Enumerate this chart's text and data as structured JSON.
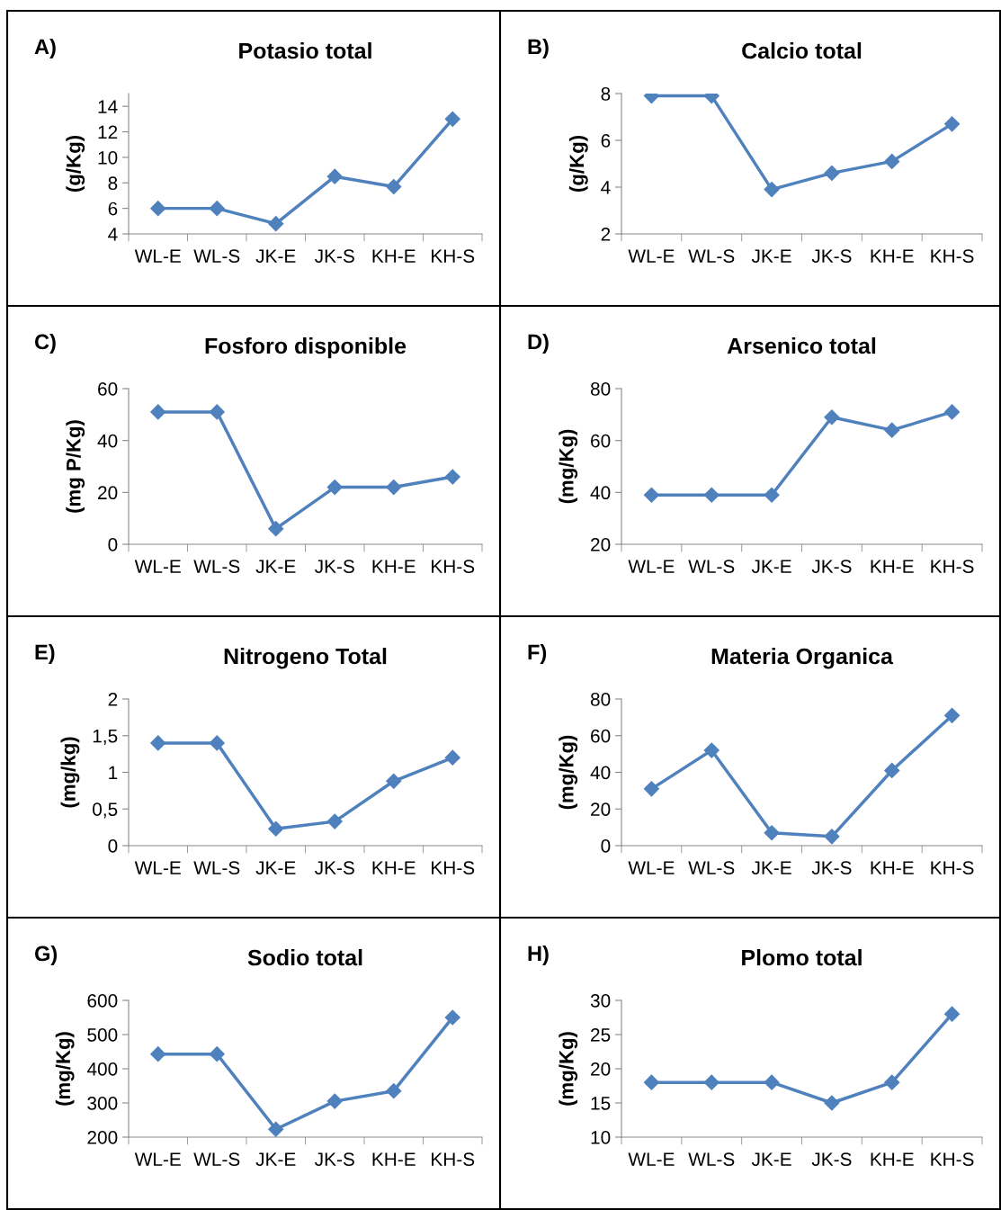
{
  "chart_data": [
    {
      "type": "line",
      "title": "Potasio total",
      "ylabel": "(g/Kg)",
      "annotations": [
        "A)"
      ],
      "categories": [
        "WL-E",
        "WL-S",
        "JK-E",
        "JK-S",
        "KH-E",
        "KH-S"
      ],
      "series": [
        {
          "color": "#4f81bd",
          "values": [
            6,
            6,
            4.8,
            8.5,
            7.7,
            13
          ]
        }
      ],
      "ylim": [
        4,
        15
      ],
      "yticks": [
        4,
        6,
        8,
        10,
        12,
        14
      ],
      "marker": "diamond",
      "line_style": "solid",
      "grid": false,
      "legend": false
    },
    {
      "type": "line",
      "title": "Calcio total",
      "ylabel": "(g/Kg)",
      "annotations": [
        "B)"
      ],
      "categories": [
        "WL-E",
        "WL-S",
        "JK-E",
        "JK-S",
        "KH-E",
        "KH-S"
      ],
      "series": [
        {
          "color": "#4f81bd",
          "values": [
            7.9,
            7.9,
            3.9,
            4.6,
            5.1,
            6.7
          ]
        }
      ],
      "ylim": [
        2,
        8
      ],
      "yticks": [
        2,
        4,
        6,
        8
      ],
      "marker": "diamond",
      "line_style": "solid",
      "grid": false,
      "legend": false
    },
    {
      "type": "line",
      "title": "Fosforo disponible",
      "ylabel": "(mg P/Kg)",
      "annotations": [
        "C)"
      ],
      "categories": [
        "WL-E",
        "WL-S",
        "JK-E",
        "JK-S",
        "KH-E",
        "KH-S"
      ],
      "series": [
        {
          "color": "#4f81bd",
          "values": [
            51,
            51,
            6,
            22,
            22,
            26
          ]
        }
      ],
      "ylim": [
        0,
        60
      ],
      "yticks": [
        0,
        20,
        40,
        60
      ],
      "marker": "diamond",
      "line_style": "solid",
      "grid": false,
      "legend": false
    },
    {
      "type": "line",
      "title": "Arsenico total",
      "ylabel": "(mg/Kg)",
      "annotations": [
        "D)"
      ],
      "categories": [
        "WL-E",
        "WL-S",
        "JK-E",
        "JK-S",
        "KH-E",
        "KH-S"
      ],
      "series": [
        {
          "color": "#4f81bd",
          "values": [
            39,
            39,
            39,
            69,
            64,
            71
          ]
        }
      ],
      "ylim": [
        20,
        80
      ],
      "yticks": [
        20,
        40,
        60,
        80
      ],
      "marker": "diamond",
      "line_style": "solid",
      "grid": false,
      "legend": false
    },
    {
      "type": "line",
      "title": "Nitrogeno Total",
      "ylabel": "(mg/kg)",
      "annotations": [
        "E)"
      ],
      "categories": [
        "WL-E",
        "WL-S",
        "JK-E",
        "JK-S",
        "KH-E",
        "KH-S"
      ],
      "series": [
        {
          "color": "#4f81bd",
          "values": [
            1.4,
            1.4,
            0.23,
            0.33,
            0.88,
            1.2
          ]
        }
      ],
      "ylim": [
        0,
        2
      ],
      "yticks": [
        0,
        {
          "value": 0.5,
          "label": "0,5"
        },
        1,
        {
          "value": 1.5,
          "label": "1,5"
        },
        2
      ],
      "marker": "diamond",
      "line_style": "solid",
      "grid": false,
      "legend": false
    },
    {
      "type": "line",
      "title": "Materia Organica",
      "ylabel": "(mg/Kg)",
      "annotations": [
        "F)"
      ],
      "categories": [
        "WL-E",
        "WL-S",
        "JK-E",
        "JK-S",
        "KH-E",
        "KH-S"
      ],
      "series": [
        {
          "color": "#4f81bd",
          "values": [
            31,
            52,
            7,
            5,
            41,
            71
          ]
        }
      ],
      "ylim": [
        0,
        80
      ],
      "yticks": [
        0,
        20,
        40,
        60,
        80
      ],
      "marker": "diamond",
      "line_style": "solid",
      "grid": false,
      "legend": false
    },
    {
      "type": "line",
      "title": "Sodio total",
      "ylabel": "(mg/Kg)",
      "annotations": [
        "G)"
      ],
      "categories": [
        "WL-E",
        "WL-S",
        "JK-E",
        "JK-S",
        "KH-E",
        "KH-S"
      ],
      "series": [
        {
          "color": "#4f81bd",
          "values": [
            443,
            443,
            223,
            305,
            335,
            550
          ]
        }
      ],
      "ylim": [
        200,
        600
      ],
      "yticks": [
        200,
        300,
        400,
        500,
        600
      ],
      "marker": "diamond",
      "line_style": "solid",
      "grid": false,
      "legend": false
    },
    {
      "type": "line",
      "title": "Plomo total",
      "ylabel": "(mg/Kg)",
      "annotations": [
        "H)"
      ],
      "categories": [
        "WL-E",
        "WL-S",
        "JK-E",
        "JK-S",
        "KH-E",
        "KH-S"
      ],
      "series": [
        {
          "color": "#4f81bd",
          "values": [
            18,
            18,
            18,
            15,
            18,
            28
          ]
        }
      ],
      "ylim": [
        10,
        30
      ],
      "yticks": [
        10,
        15,
        20,
        25,
        30
      ],
      "marker": "diamond",
      "line_style": "solid",
      "grid": false,
      "legend": false
    }
  ]
}
